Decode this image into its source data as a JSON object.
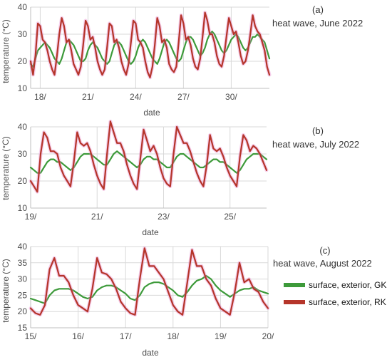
{
  "chart_data": [
    {
      "type": "line",
      "panel_label": "(a)",
      "title": "heat wave, June 2022",
      "xlabel": "date",
      "ylabel": "temperature (°C)",
      "ylim": [
        10,
        40
      ],
      "yticks": [
        10,
        20,
        30,
        40
      ],
      "xlim": [
        17.4,
        32.4
      ],
      "xticks": [
        18,
        21,
        24,
        27,
        30
      ],
      "xtick_labels": [
        "18/",
        "21/",
        "24/",
        "27/",
        "30/"
      ],
      "grid": true,
      "series": [
        {
          "name": "surface, exterior, GK",
          "color": "#3d9a3a",
          "x": [
            17.4,
            17.55,
            17.7,
            17.85,
            18.0,
            18.15,
            18.3,
            18.45,
            18.6,
            18.75,
            18.9,
            19.05,
            19.2,
            19.35,
            19.5,
            19.65,
            19.8,
            19.95,
            20.1,
            20.25,
            20.4,
            20.55,
            20.7,
            20.85,
            21.0,
            21.15,
            21.3,
            21.45,
            21.6,
            21.75,
            21.9,
            22.05,
            22.2,
            22.35,
            22.5,
            22.65,
            22.8,
            22.95,
            23.1,
            23.25,
            23.4,
            23.55,
            23.7,
            23.85,
            24.0,
            24.15,
            24.3,
            24.45,
            24.6,
            24.75,
            24.9,
            25.05,
            25.2,
            25.35,
            25.5,
            25.65,
            25.8,
            25.95,
            26.1,
            26.25,
            26.4,
            26.55,
            26.7,
            26.85,
            27.0,
            27.15,
            27.3,
            27.45,
            27.6,
            27.75,
            27.9,
            28.05,
            28.2,
            28.35,
            28.5,
            28.65,
            28.8,
            28.95,
            29.1,
            29.25,
            29.4,
            29.55,
            29.7,
            29.85,
            30.0,
            30.15,
            30.3,
            30.45,
            30.6,
            30.75,
            30.9,
            31.05,
            31.2,
            31.35,
            31.5,
            31.65,
            31.8,
            31.95,
            32.1,
            32.25,
            32.4
          ],
          "y": [
            19,
            18,
            21,
            24,
            25,
            26,
            27,
            26,
            25,
            23,
            21,
            20,
            19,
            21,
            24,
            27,
            28,
            27,
            26,
            24,
            22,
            20,
            20,
            21,
            24,
            26,
            27,
            26,
            25,
            23,
            21,
            20,
            19,
            20,
            23,
            26,
            27,
            27,
            26,
            24,
            22,
            20,
            19,
            20,
            22,
            25,
            27,
            28,
            27,
            25,
            23,
            21,
            20,
            19,
            21,
            24,
            27,
            28,
            27,
            25,
            23,
            21,
            20,
            21,
            24,
            27,
            29,
            29,
            28,
            26,
            24,
            22,
            23,
            25,
            28,
            30,
            31,
            30,
            28,
            26,
            24,
            23,
            24,
            26,
            28,
            29,
            30,
            29,
            27,
            25,
            24,
            25,
            27,
            29,
            29,
            30,
            29,
            28,
            27,
            24,
            21
          ]
        },
        {
          "name": "surface, exterior, RK",
          "color": "#b5352a",
          "x": [
            17.4,
            17.55,
            17.7,
            17.85,
            18.0,
            18.15,
            18.3,
            18.45,
            18.6,
            18.75,
            18.9,
            19.05,
            19.2,
            19.35,
            19.5,
            19.65,
            19.8,
            19.95,
            20.1,
            20.25,
            20.4,
            20.55,
            20.7,
            20.85,
            21.0,
            21.15,
            21.3,
            21.45,
            21.6,
            21.75,
            21.9,
            22.05,
            22.2,
            22.35,
            22.5,
            22.65,
            22.8,
            22.95,
            23.1,
            23.25,
            23.4,
            23.55,
            23.7,
            23.85,
            24.0,
            24.15,
            24.3,
            24.45,
            24.6,
            24.75,
            24.9,
            25.05,
            25.2,
            25.35,
            25.5,
            25.65,
            25.8,
            25.95,
            26.1,
            26.25,
            26.4,
            26.55,
            26.7,
            26.85,
            27.0,
            27.15,
            27.3,
            27.45,
            27.6,
            27.75,
            27.9,
            28.05,
            28.2,
            28.35,
            28.5,
            28.65,
            28.8,
            28.95,
            29.1,
            29.25,
            29.4,
            29.55,
            29.7,
            29.85,
            30.0,
            30.15,
            30.3,
            30.45,
            30.6,
            30.75,
            30.9,
            31.05,
            31.2,
            31.35,
            31.5,
            31.65,
            31.8,
            31.95,
            32.1,
            32.25,
            32.4
          ],
          "y": [
            20,
            15,
            22,
            34,
            33,
            28,
            27,
            24,
            20,
            17,
            15,
            22,
            30,
            36,
            33,
            27,
            28,
            24,
            19,
            17,
            15,
            18,
            26,
            35,
            33,
            28,
            29,
            25,
            20,
            17,
            15,
            17,
            25,
            34,
            33,
            27,
            28,
            25,
            20,
            17,
            15,
            19,
            27,
            35,
            34,
            28,
            27,
            25,
            20,
            16,
            14,
            18,
            26,
            36,
            33,
            27,
            28,
            25,
            19,
            17,
            16,
            18,
            27,
            37,
            34,
            28,
            29,
            26,
            21,
            18,
            17,
            21,
            29,
            38,
            35,
            30,
            30,
            27,
            22,
            19,
            18,
            22,
            29,
            36,
            33,
            30,
            31,
            27,
            22,
            19,
            20,
            24,
            30,
            37,
            33,
            31,
            30,
            27,
            24,
            18,
            15
          ]
        }
      ]
    },
    {
      "type": "line",
      "panel_label": "(b)",
      "title": "heat wave, July 2022",
      "xlabel": "date",
      "ylabel": "temperature (°C)",
      "ylim": [
        10,
        40
      ],
      "yticks": [
        10,
        20,
        30,
        40
      ],
      "xlim": [
        19,
        26.1
      ],
      "xticks": [
        19,
        21,
        23,
        25
      ],
      "xtick_labels": [
        "19/",
        "21/",
        "23/",
        "25/"
      ],
      "grid": true,
      "series": [
        {
          "name": "surface, exterior, GK",
          "color": "#3d9a3a",
          "x": [
            19.0,
            19.1,
            19.2,
            19.3,
            19.4,
            19.5,
            19.6,
            19.7,
            19.8,
            19.9,
            20.0,
            20.1,
            20.2,
            20.3,
            20.4,
            20.5,
            20.6,
            20.7,
            20.8,
            20.9,
            21.0,
            21.1,
            21.2,
            21.3,
            21.4,
            21.5,
            21.6,
            21.7,
            21.8,
            21.9,
            22.0,
            22.1,
            22.2,
            22.3,
            22.4,
            22.5,
            22.6,
            22.7,
            22.8,
            22.9,
            23.0,
            23.1,
            23.2,
            23.3,
            23.4,
            23.5,
            23.6,
            23.7,
            23.8,
            23.9,
            24.0,
            24.1,
            24.2,
            24.3,
            24.4,
            24.5,
            24.6,
            24.7,
            24.8,
            24.9,
            25.0,
            25.1,
            25.2,
            25.3,
            25.4,
            25.5,
            25.6,
            25.7,
            25.8,
            25.9,
            26.0,
            26.1
          ],
          "y": [
            25,
            24,
            23,
            23,
            25,
            27,
            28,
            28,
            27,
            27,
            26,
            25,
            24,
            25,
            27,
            29,
            30,
            30,
            30,
            29,
            28,
            27,
            26,
            26,
            28,
            30,
            31,
            30,
            29,
            28,
            27,
            26,
            25,
            26,
            28,
            29,
            29,
            28,
            28,
            27,
            26,
            25,
            25,
            27,
            29,
            30,
            30,
            29,
            28,
            27,
            26,
            25,
            25,
            26,
            27,
            28,
            28,
            27,
            27,
            26,
            25,
            24,
            23,
            24,
            26,
            28,
            29,
            30,
            30,
            30,
            29,
            28
          ]
        },
        {
          "name": "surface, exterior, RK",
          "color": "#b5352a",
          "x": [
            19.0,
            19.1,
            19.2,
            19.3,
            19.4,
            19.5,
            19.6,
            19.7,
            19.8,
            19.9,
            20.0,
            20.1,
            20.2,
            20.3,
            20.4,
            20.5,
            20.6,
            20.7,
            20.8,
            20.9,
            21.0,
            21.1,
            21.2,
            21.3,
            21.4,
            21.5,
            21.6,
            21.7,
            21.8,
            21.9,
            22.0,
            22.1,
            22.2,
            22.3,
            22.4,
            22.5,
            22.6,
            22.7,
            22.8,
            22.9,
            23.0,
            23.1,
            23.2,
            23.3,
            23.4,
            23.5,
            23.6,
            23.7,
            23.8,
            23.9,
            24.0,
            24.1,
            24.2,
            24.3,
            24.4,
            24.5,
            24.6,
            24.7,
            24.8,
            24.9,
            25.0,
            25.1,
            25.2,
            25.3,
            25.4,
            25.5,
            25.6,
            25.7,
            25.8,
            25.9,
            26.0,
            26.1
          ],
          "y": [
            20,
            18,
            16,
            30,
            38,
            36,
            31,
            31,
            30,
            25,
            22,
            20,
            18,
            27,
            38,
            34,
            33,
            34,
            31,
            26,
            22,
            19,
            17,
            30,
            42,
            38,
            34,
            34,
            31,
            26,
            22,
            19,
            17,
            28,
            39,
            35,
            31,
            33,
            30,
            25,
            21,
            19,
            18,
            30,
            40,
            37,
            34,
            34,
            31,
            27,
            23,
            20,
            18,
            26,
            37,
            32,
            31,
            32,
            29,
            25,
            22,
            20,
            18,
            29,
            37,
            35,
            31,
            33,
            32,
            30,
            27,
            24
          ]
        }
      ]
    },
    {
      "type": "line",
      "panel_label": "(c)",
      "title": "heat wave, August 2022",
      "xlabel": "date",
      "ylabel": "temperature (°C)",
      "ylim": [
        15,
        40
      ],
      "yticks": [
        15,
        20,
        25,
        30,
        35,
        40
      ],
      "xlim": [
        15,
        20
      ],
      "xticks": [
        15,
        16,
        17,
        18,
        19,
        20
      ],
      "xtick_labels": [
        "15/",
        "16/",
        "17/",
        "18/",
        "19/",
        "20/"
      ],
      "grid": true,
      "series": [
        {
          "name": "surface, exterior, GK",
          "color": "#3d9a3a",
          "x": [
            15.0,
            15.1,
            15.2,
            15.3,
            15.4,
            15.5,
            15.6,
            15.7,
            15.8,
            15.9,
            16.0,
            16.1,
            16.2,
            16.3,
            16.4,
            16.5,
            16.6,
            16.7,
            16.8,
            16.9,
            17.0,
            17.1,
            17.2,
            17.3,
            17.4,
            17.5,
            17.6,
            17.7,
            17.8,
            17.9,
            18.0,
            18.1,
            18.2,
            18.3,
            18.4,
            18.5,
            18.6,
            18.7,
            18.8,
            18.9,
            19.0,
            19.1,
            19.2,
            19.3,
            19.4,
            19.5,
            19.6,
            19.7,
            19.8,
            19.9,
            20.0
          ],
          "y": [
            24,
            23.5,
            23,
            22.5,
            25,
            26.5,
            27,
            27,
            27,
            26.5,
            25.5,
            24.5,
            24,
            24.5,
            26.5,
            27.5,
            28,
            28,
            27.5,
            26.5,
            25.5,
            24,
            23.5,
            25,
            27.5,
            28.5,
            29,
            29,
            28.5,
            27.5,
            26.5,
            25,
            24.5,
            26,
            28,
            29.5,
            30,
            31,
            30,
            28,
            26.5,
            25.5,
            24.5,
            25.5,
            26.5,
            27,
            27,
            27.5,
            26.5,
            26,
            25.5
          ]
        },
        {
          "name": "surface, exterior, RK",
          "color": "#b5352a",
          "x": [
            15.0,
            15.1,
            15.2,
            15.3,
            15.4,
            15.5,
            15.6,
            15.7,
            15.8,
            15.9,
            16.0,
            16.1,
            16.2,
            16.3,
            16.4,
            16.5,
            16.6,
            16.7,
            16.8,
            16.9,
            17.0,
            17.1,
            17.2,
            17.3,
            17.4,
            17.5,
            17.6,
            17.7,
            17.8,
            17.9,
            18.0,
            18.1,
            18.2,
            18.3,
            18.4,
            18.5,
            18.6,
            18.7,
            18.8,
            18.9,
            19.0,
            19.1,
            19.2,
            19.3,
            19.4,
            19.5,
            19.6,
            19.7,
            19.8,
            19.9,
            20.0
          ],
          "y": [
            21,
            19.5,
            19,
            22,
            33,
            36.5,
            31,
            31,
            29,
            25,
            22,
            21,
            20,
            27,
            36.5,
            32,
            31.5,
            30,
            27,
            23,
            21,
            19.5,
            19,
            30,
            39.5,
            34,
            34,
            32,
            30,
            26,
            22,
            20,
            19,
            29,
            39,
            34,
            34,
            30,
            28,
            24,
            21,
            20,
            19,
            26,
            35,
            29,
            30,
            27,
            26,
            23,
            21
          ]
        }
      ]
    }
  ],
  "legend": {
    "placement": "right",
    "entries": [
      {
        "label": "surface, exterior, GK",
        "color": "#3d9a3a"
      },
      {
        "label": "surface, exterior, RK",
        "color": "#b5352a"
      }
    ]
  }
}
